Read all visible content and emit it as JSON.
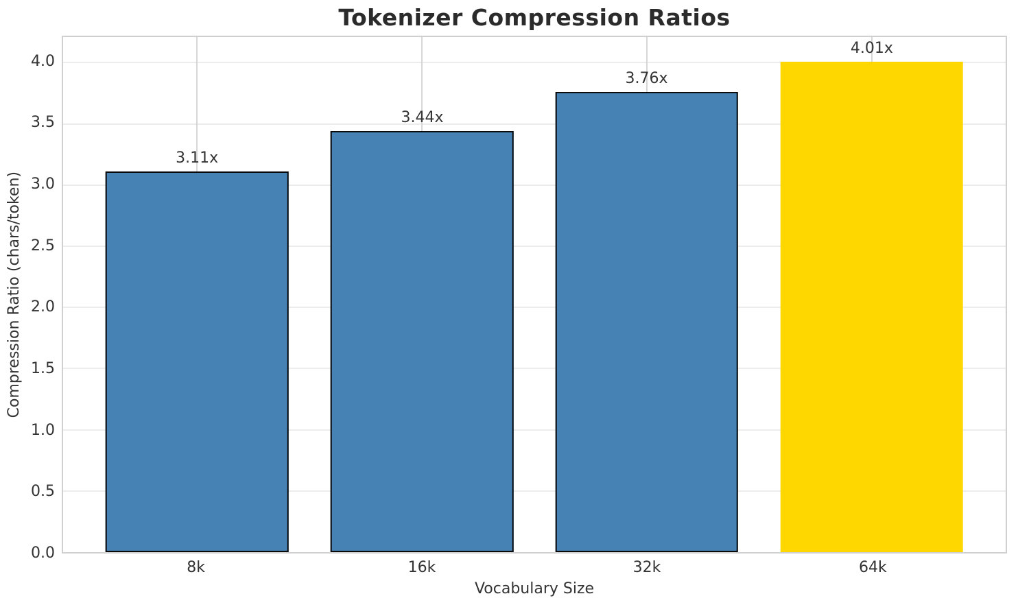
{
  "chart_data": {
    "type": "bar",
    "title": "Tokenizer Compression Ratios",
    "xlabel": "Vocabulary Size",
    "ylabel": "Compression Ratio (chars/token)",
    "categories": [
      "8k",
      "16k",
      "32k",
      "64k"
    ],
    "values": [
      3.11,
      3.44,
      3.76,
      4.01
    ],
    "bar_labels": [
      "3.11x",
      "3.44x",
      "3.76x",
      "4.01x"
    ],
    "bar_colors": [
      "#4682b4",
      "#4682b4",
      "#4682b4",
      "#ffd700"
    ],
    "bar_edge_colors": [
      "#0a0a0a",
      "#0a0a0a",
      "#0a0a0a",
      "none"
    ],
    "ylim": [
      0,
      4.21
    ],
    "yticks": [
      0.0,
      0.5,
      1.0,
      1.5,
      2.0,
      2.5,
      3.0,
      3.5,
      4.0
    ],
    "ytick_labels": [
      "0.0",
      "0.5",
      "1.0",
      "1.5",
      "2.0",
      "2.5",
      "3.0",
      "3.5",
      "4.0"
    ],
    "grid": true,
    "legend_position": "none"
  },
  "colors": {
    "background": "#ffffff",
    "bar_fill_default": "#4682b4",
    "bar_fill_highlight": "#ffd700",
    "bar_edge": "#0a0a0a",
    "grid_horizontal": "#ececec",
    "grid_vertical": "#d6d6d6",
    "spine": "#d0d0d0",
    "title_text": "#2b2b2b",
    "tick_text": "#333333"
  }
}
